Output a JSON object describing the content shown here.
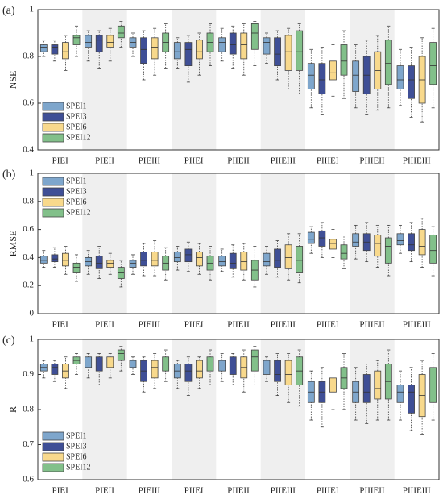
{
  "chart_data": [
    {
      "type": "box",
      "panel_label": "(a)",
      "ylabel": "NSE",
      "legend": "lower left",
      "categories": [
        "PIEI",
        "PIEII",
        "PIEIII",
        "PIIEI",
        "PIIEII",
        "PIIEIII",
        "PIIIEI",
        "PIIIEII",
        "PIIIEIII"
      ],
      "ylim": [
        0.4,
        1
      ],
      "yticks": [
        0.4,
        0.6,
        0.8,
        1
      ],
      "series": [
        {
          "name": "SPEI1",
          "color": "#7ea6cc",
          "values": [
            [
              0.8,
              0.82,
              0.84,
              0.85,
              0.87
            ],
            [
              0.78,
              0.84,
              0.86,
              0.89,
              0.91
            ],
            [
              0.8,
              0.84,
              0.86,
              0.88,
              0.9
            ],
            [
              0.75,
              0.79,
              0.82,
              0.86,
              0.88
            ],
            [
              0.78,
              0.82,
              0.86,
              0.88,
              0.92
            ],
            [
              0.77,
              0.81,
              0.86,
              0.88,
              0.9
            ],
            [
              0.58,
              0.66,
              0.72,
              0.77,
              0.83
            ],
            [
              0.58,
              0.65,
              0.72,
              0.78,
              0.85
            ],
            [
              0.59,
              0.66,
              0.7,
              0.76,
              0.83
            ]
          ]
        },
        {
          "name": "SPEI3",
          "color": "#3f4f96",
          "values": [
            [
              0.78,
              0.81,
              0.84,
              0.85,
              0.87
            ],
            [
              0.75,
              0.82,
              0.87,
              0.89,
              0.91
            ],
            [
              0.7,
              0.77,
              0.83,
              0.88,
              0.91
            ],
            [
              0.69,
              0.76,
              0.83,
              0.86,
              0.89
            ],
            [
              0.75,
              0.81,
              0.85,
              0.9,
              0.93
            ],
            [
              0.7,
              0.76,
              0.81,
              0.88,
              0.91
            ],
            [
              0.55,
              0.64,
              0.7,
              0.77,
              0.84
            ],
            [
              0.55,
              0.64,
              0.72,
              0.8,
              0.87
            ],
            [
              0.54,
              0.62,
              0.7,
              0.76,
              0.84
            ]
          ]
        },
        {
          "name": "SPEI6",
          "color": "#f8d98c",
          "values": [
            [
              0.74,
              0.79,
              0.82,
              0.86,
              0.89
            ],
            [
              0.78,
              0.84,
              0.86,
              0.89,
              0.92
            ],
            [
              0.72,
              0.79,
              0.84,
              0.88,
              0.92
            ],
            [
              0.72,
              0.79,
              0.82,
              0.87,
              0.9
            ],
            [
              0.72,
              0.79,
              0.85,
              0.9,
              0.94
            ],
            [
              0.66,
              0.74,
              0.82,
              0.89,
              0.92
            ],
            [
              0.63,
              0.7,
              0.73,
              0.78,
              0.85
            ],
            [
              0.57,
              0.66,
              0.74,
              0.82,
              0.89
            ],
            [
              0.52,
              0.6,
              0.7,
              0.8,
              0.88
            ]
          ]
        },
        {
          "name": "SPEI12",
          "color": "#82c08a",
          "values": [
            [
              0.8,
              0.85,
              0.88,
              0.89,
              0.93
            ],
            [
              0.84,
              0.88,
              0.9,
              0.93,
              0.95
            ],
            [
              0.75,
              0.82,
              0.86,
              0.9,
              0.94
            ],
            [
              0.76,
              0.82,
              0.86,
              0.9,
              0.94
            ],
            [
              0.76,
              0.83,
              0.9,
              0.94,
              0.95
            ],
            [
              0.64,
              0.74,
              0.82,
              0.91,
              0.94
            ],
            [
              0.62,
              0.72,
              0.78,
              0.85,
              0.91
            ],
            [
              0.58,
              0.68,
              0.77,
              0.87,
              0.93
            ],
            [
              0.58,
              0.68,
              0.76,
              0.86,
              0.92
            ]
          ]
        }
      ]
    },
    {
      "type": "box",
      "panel_label": "(b)",
      "ylabel": "RMSE",
      "legend": "upper left",
      "categories": [
        "PIEI",
        "PIEII",
        "PIEIII",
        "PIIEI",
        "PIIEII",
        "PIIEIII",
        "PIIIEI",
        "PIIIEII",
        "PIIIEIII"
      ],
      "ylim": [
        0,
        1
      ],
      "yticks": [
        0,
        0.2,
        0.4,
        0.6,
        0.8,
        1
      ],
      "series": [
        {
          "name": "SPEI1",
          "color": "#7ea6cc",
          "values": [
            [
              0.33,
              0.36,
              0.38,
              0.41,
              0.45
            ],
            [
              0.28,
              0.34,
              0.37,
              0.4,
              0.45
            ],
            [
              0.28,
              0.33,
              0.36,
              0.38,
              0.42
            ],
            [
              0.31,
              0.37,
              0.4,
              0.44,
              0.48
            ],
            [
              0.3,
              0.34,
              0.37,
              0.41,
              0.46
            ],
            [
              0.28,
              0.34,
              0.37,
              0.43,
              0.48
            ],
            [
              0.43,
              0.5,
              0.53,
              0.58,
              0.62
            ],
            [
              0.39,
              0.48,
              0.51,
              0.57,
              0.63
            ],
            [
              0.43,
              0.49,
              0.52,
              0.57,
              0.63
            ]
          ]
        },
        {
          "name": "SPEI3",
          "color": "#3f4f96",
          "values": [
            [
              0.33,
              0.37,
              0.39,
              0.42,
              0.47
            ],
            [
              0.25,
              0.32,
              0.36,
              0.41,
              0.48
            ],
            [
              0.27,
              0.34,
              0.38,
              0.44,
              0.5
            ],
            [
              0.3,
              0.37,
              0.42,
              0.46,
              0.51
            ],
            [
              0.26,
              0.32,
              0.36,
              0.43,
              0.49
            ],
            [
              0.26,
              0.33,
              0.38,
              0.46,
              0.52
            ],
            [
              0.4,
              0.48,
              0.54,
              0.59,
              0.65
            ],
            [
              0.37,
              0.45,
              0.51,
              0.57,
              0.65
            ],
            [
              0.37,
              0.45,
              0.49,
              0.57,
              0.65
            ]
          ]
        },
        {
          "name": "SPEI6",
          "color": "#f8d98c",
          "values": [
            [
              0.28,
              0.34,
              0.38,
              0.43,
              0.48
            ],
            [
              0.28,
              0.33,
              0.36,
              0.38,
              0.43
            ],
            [
              0.27,
              0.34,
              0.38,
              0.44,
              0.52
            ],
            [
              0.28,
              0.34,
              0.4,
              0.44,
              0.5
            ],
            [
              0.24,
              0.31,
              0.37,
              0.44,
              0.5
            ],
            [
              0.24,
              0.32,
              0.4,
              0.49,
              0.57
            ],
            [
              0.4,
              0.46,
              0.5,
              0.53,
              0.6
            ],
            [
              0.33,
              0.41,
              0.5,
              0.56,
              0.63
            ],
            [
              0.33,
              0.42,
              0.48,
              0.6,
              0.68
            ]
          ]
        },
        {
          "name": "SPEI12",
          "color": "#82c08a",
          "values": [
            [
              0.23,
              0.29,
              0.33,
              0.36,
              0.42
            ],
            [
              0.19,
              0.25,
              0.29,
              0.33,
              0.38
            ],
            [
              0.24,
              0.31,
              0.36,
              0.41,
              0.47
            ],
            [
              0.24,
              0.31,
              0.36,
              0.41,
              0.48
            ],
            [
              0.19,
              0.24,
              0.31,
              0.38,
              0.48
            ],
            [
              0.22,
              0.29,
              0.38,
              0.48,
              0.57
            ],
            [
              0.32,
              0.39,
              0.43,
              0.49,
              0.56
            ],
            [
              0.27,
              0.36,
              0.48,
              0.54,
              0.63
            ],
            [
              0.27,
              0.36,
              0.45,
              0.56,
              0.62
            ]
          ]
        }
      ]
    },
    {
      "type": "box",
      "panel_label": "(c)",
      "ylabel": "R",
      "legend": "lower left",
      "categories": [
        "PIEI",
        "PIEII",
        "PIEIII",
        "PIIEI",
        "PIIEII",
        "PIIEIII",
        "PIIIEI",
        "PIIIEII",
        "PIIIEIII"
      ],
      "ylim": [
        0.6,
        1
      ],
      "yticks": [
        0.6,
        0.7,
        0.8,
        0.9,
        1
      ],
      "series": [
        {
          "name": "SPEI1",
          "color": "#7ea6cc",
          "values": [
            [
              0.89,
              0.91,
              0.92,
              0.93,
              0.94
            ],
            [
              0.89,
              0.92,
              0.93,
              0.95,
              0.96
            ],
            [
              0.9,
              0.92,
              0.93,
              0.94,
              0.95
            ],
            [
              0.86,
              0.89,
              0.91,
              0.93,
              0.94
            ],
            [
              0.88,
              0.91,
              0.93,
              0.94,
              0.96
            ],
            [
              0.88,
              0.9,
              0.93,
              0.94,
              0.95
            ],
            [
              0.77,
              0.82,
              0.85,
              0.88,
              0.91
            ],
            [
              0.77,
              0.82,
              0.85,
              0.88,
              0.92
            ],
            [
              0.77,
              0.82,
              0.85,
              0.87,
              0.91
            ]
          ]
        },
        {
          "name": "SPEI3",
          "color": "#3f4f96",
          "values": [
            [
              0.88,
              0.9,
              0.92,
              0.93,
              0.94
            ],
            [
              0.87,
              0.91,
              0.93,
              0.95,
              0.96
            ],
            [
              0.85,
              0.88,
              0.91,
              0.94,
              0.95
            ],
            [
              0.84,
              0.88,
              0.91,
              0.93,
              0.95
            ],
            [
              0.87,
              0.9,
              0.93,
              0.95,
              0.96
            ],
            [
              0.84,
              0.88,
              0.9,
              0.94,
              0.96
            ],
            [
              0.75,
              0.82,
              0.85,
              0.88,
              0.92
            ],
            [
              0.76,
              0.82,
              0.85,
              0.9,
              0.93
            ],
            [
              0.74,
              0.79,
              0.85,
              0.87,
              0.92
            ]
          ]
        },
        {
          "name": "SPEI6",
          "color": "#f8d98c",
          "values": [
            [
              0.86,
              0.89,
              0.91,
              0.93,
              0.95
            ],
            [
              0.89,
              0.92,
              0.93,
              0.95,
              0.96
            ],
            [
              0.86,
              0.89,
              0.92,
              0.94,
              0.96
            ],
            [
              0.86,
              0.89,
              0.91,
              0.94,
              0.95
            ],
            [
              0.85,
              0.89,
              0.92,
              0.95,
              0.97
            ],
            [
              0.82,
              0.87,
              0.9,
              0.94,
              0.96
            ],
            [
              0.8,
              0.85,
              0.87,
              0.89,
              0.93
            ],
            [
              0.77,
              0.83,
              0.86,
              0.91,
              0.94
            ],
            [
              0.73,
              0.78,
              0.84,
              0.9,
              0.94
            ]
          ]
        },
        {
          "name": "SPEI12",
          "color": "#82c08a",
          "values": [
            [
              0.9,
              0.93,
              0.94,
              0.95,
              0.96
            ],
            [
              0.91,
              0.94,
              0.96,
              0.97,
              0.98
            ],
            [
              0.88,
              0.91,
              0.93,
              0.95,
              0.97
            ],
            [
              0.87,
              0.91,
              0.93,
              0.95,
              0.97
            ],
            [
              0.87,
              0.91,
              0.95,
              0.97,
              0.98
            ],
            [
              0.81,
              0.87,
              0.91,
              0.95,
              0.97
            ],
            [
              0.8,
              0.86,
              0.89,
              0.92,
              0.96
            ],
            [
              0.77,
              0.83,
              0.88,
              0.93,
              0.97
            ],
            [
              0.77,
              0.82,
              0.87,
              0.92,
              0.96
            ]
          ]
        }
      ]
    }
  ]
}
